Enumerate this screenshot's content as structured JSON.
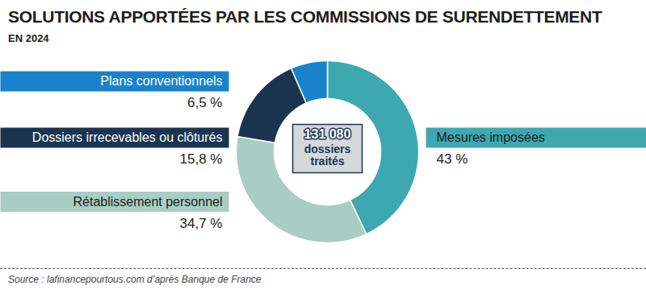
{
  "chart_data": {
    "type": "pie",
    "title": "SOLUTIONS APPORTÉES PAR LES COMMISSIONS DE SURENDETTEMENT",
    "subtitle": "EN 2024",
    "categories": [
      "Mesures imposées",
      "Rétablissement personnel",
      "Dossiers irrecevables ou clôturés",
      "Plans conventionnels"
    ],
    "values": [
      43,
      34.7,
      15.8,
      6.5
    ],
    "value_labels": [
      "43 %",
      "34,7 %",
      "15,8 %",
      "6,5 %"
    ],
    "colors": [
      "#3ea8b0",
      "#a8cdc3",
      "#1b3551",
      "#1a82cc"
    ],
    "data_labels": true,
    "annotations": [
      {
        "value": 131080,
        "label": "131 080",
        "text": "dossiers traités"
      }
    ],
    "source": "Source : lafinancepourtous.com d’après Banque de France"
  }
}
